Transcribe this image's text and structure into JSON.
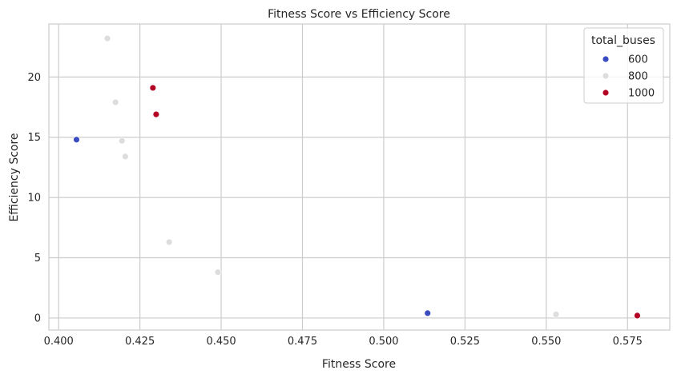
{
  "chart_data": {
    "type": "scatter",
    "title": "Fitness Score vs Efficiency Score",
    "xlabel": "Fitness Score",
    "ylabel": "Efficiency Score",
    "xlim": [
      0.397,
      0.588
    ],
    "ylim": [
      -1.0,
      24.4
    ],
    "xticks": [
      0.4,
      0.425,
      0.45,
      0.475,
      0.5,
      0.525,
      0.55,
      0.575
    ],
    "xtick_labels": [
      "0.400",
      "0.425",
      "0.450",
      "0.475",
      "0.500",
      "0.525",
      "0.550",
      "0.575"
    ],
    "yticks": [
      0,
      5,
      10,
      15,
      20
    ],
    "ytick_labels": [
      "0",
      "5",
      "10",
      "15",
      "20"
    ],
    "grid": true,
    "legend": {
      "title": "total_buses",
      "placement": "top-right",
      "entries": [
        {
          "label": "600",
          "color": "#3b4cc0"
        },
        {
          "label": "800",
          "color": "#dddddd"
        },
        {
          "label": "1000",
          "color": "#b40426"
        }
      ]
    },
    "series": [
      {
        "name": "600",
        "color": "#3b4cc0",
        "points": [
          [
            0.4055,
            14.8
          ],
          [
            0.5135,
            0.4
          ]
        ]
      },
      {
        "name": "800",
        "color": "#dddddd",
        "points": [
          [
            0.415,
            23.2
          ],
          [
            0.4175,
            17.9
          ],
          [
            0.4195,
            14.7
          ],
          [
            0.4205,
            13.4
          ],
          [
            0.434,
            6.3
          ],
          [
            0.449,
            3.8
          ],
          [
            0.553,
            0.3
          ]
        ]
      },
      {
        "name": "1000",
        "color": "#b40426",
        "points": [
          [
            0.429,
            19.1
          ],
          [
            0.43,
            16.9
          ],
          [
            0.578,
            0.2
          ]
        ]
      }
    ]
  }
}
